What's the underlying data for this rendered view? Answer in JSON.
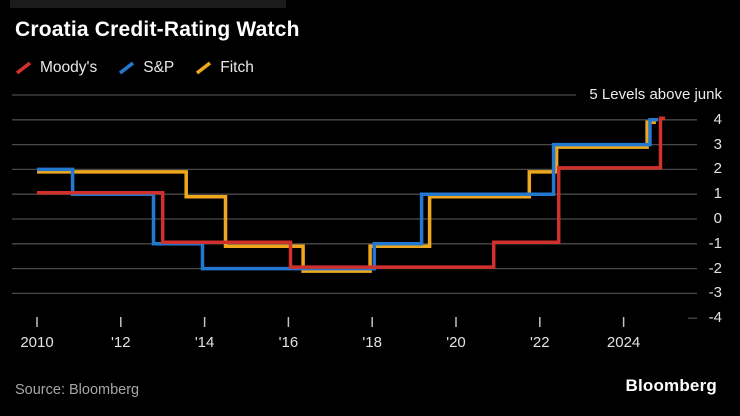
{
  "header": {
    "title": "Croatia Credit-Rating Watch"
  },
  "legend": [
    {
      "label": "Moody's",
      "color": "#d0312d"
    },
    {
      "label": "S&P",
      "color": "#2379d0"
    },
    {
      "label": "Fitch",
      "color": "#efa81e"
    }
  ],
  "footer": {
    "source": "Source: Bloomberg",
    "brand": "Bloomberg"
  },
  "colors": {
    "background": "#000000",
    "gridline": "#4a4a4a",
    "tick": "#c2c2c2",
    "axis_text": "#e2e2e2",
    "title_text": "#ffffff"
  },
  "chart_data": {
    "type": "line",
    "subtype": "step",
    "title": "Croatia Credit-Rating Watch",
    "units_label": "Levels above junk",
    "xlim": [
      2010,
      2025.7
    ],
    "ylim": [
      -4,
      5
    ],
    "grid": true,
    "legend_position": "top-left",
    "y_axis": {
      "ticks": [
        {
          "level": 5,
          "label": "5 Levels above junk"
        },
        {
          "level": 4,
          "label": "4"
        },
        {
          "level": 3,
          "label": "3"
        },
        {
          "level": 2,
          "label": "2"
        },
        {
          "level": 1,
          "label": "1"
        },
        {
          "level": 0,
          "label": "0"
        },
        {
          "level": -1,
          "label": "-1"
        },
        {
          "level": -2,
          "label": "-2"
        },
        {
          "level": -3,
          "label": "-3"
        },
        {
          "level": -4,
          "label": "-4"
        }
      ]
    },
    "x_axis": {
      "ticks": [
        {
          "year": 2010,
          "label": "2010"
        },
        {
          "year": 2012,
          "label": "'12"
        },
        {
          "year": 2014,
          "label": "'14"
        },
        {
          "year": 2016,
          "label": "'16"
        },
        {
          "year": 2018,
          "label": "'18"
        },
        {
          "year": 2020,
          "label": "'20"
        },
        {
          "year": 2022,
          "label": "'22"
        },
        {
          "year": 2024,
          "label": "2024"
        }
      ]
    },
    "series": [
      {
        "name": "Moody's",
        "color": "#d0312d",
        "points": [
          [
            2010,
            1
          ],
          [
            2013.0,
            -1
          ],
          [
            2016.05,
            -2
          ],
          [
            2020.9,
            -1
          ],
          [
            2022.45,
            2
          ],
          [
            2024.88,
            4
          ],
          [
            2024.99,
            4
          ]
        ]
      },
      {
        "name": "S&P",
        "color": "#2379d0",
        "points": [
          [
            2010,
            2
          ],
          [
            2010.85,
            1
          ],
          [
            2012.78,
            -1
          ],
          [
            2013.95,
            -2
          ],
          [
            2018.05,
            -1
          ],
          [
            2019.18,
            1
          ],
          [
            2022.33,
            3
          ],
          [
            2024.63,
            4
          ],
          [
            2024.82,
            4
          ]
        ]
      },
      {
        "name": "Fitch",
        "color": "#efa81e",
        "points": [
          [
            2010,
            2
          ],
          [
            2013.56,
            1
          ],
          [
            2014.5,
            -1
          ],
          [
            2016.35,
            -2
          ],
          [
            2017.95,
            -1
          ],
          [
            2019.37,
            1
          ],
          [
            2021.75,
            2
          ],
          [
            2022.4,
            3
          ],
          [
            2024.56,
            4
          ],
          [
            2024.77,
            4
          ]
        ]
      }
    ]
  }
}
